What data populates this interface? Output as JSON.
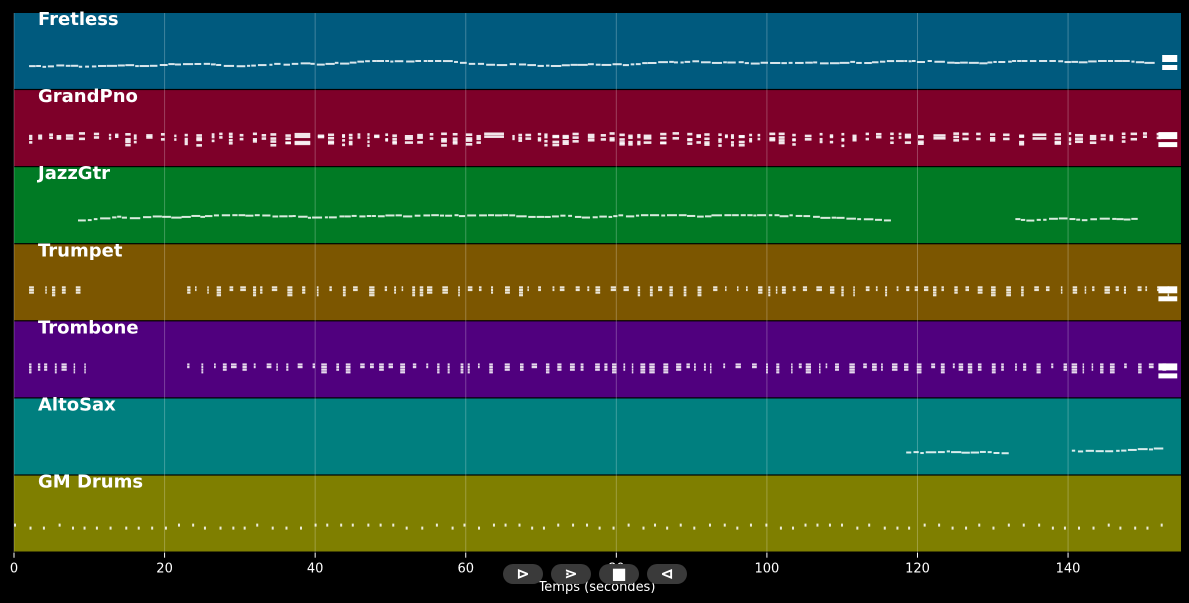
{
  "chart_data": {
    "type": "piano-roll",
    "xlabel": "Temps (secondes)",
    "xlim": [
      0,
      155
    ],
    "xticks": [
      0,
      20,
      40,
      60,
      80,
      100,
      120,
      140
    ],
    "grid": true,
    "tracks": [
      {
        "name": "Fretless",
        "color": "#005a7e",
        "style": "melody",
        "active": [
          [
            2,
            151
          ]
        ],
        "block": [
          152.5,
          154.5
        ]
      },
      {
        "name": "GrandPno",
        "color": "#7e0029",
        "style": "chords",
        "active": [
          [
            2,
            153
          ]
        ],
        "block": [
          152,
          154.5
        ]
      },
      {
        "name": "JazzGtr",
        "color": "#007a24",
        "style": "melody",
        "active": [
          [
            8.5,
            116
          ],
          [
            133,
            149
          ]
        ],
        "block": null
      },
      {
        "name": "Trumpet",
        "color": "#7c5600",
        "style": "stabs",
        "active": [
          [
            2,
            10
          ],
          [
            23,
            154
          ]
        ],
        "block": [
          152,
          154.5
        ]
      },
      {
        "name": "Trombone",
        "color": "#50007e",
        "style": "stabs",
        "active": [
          [
            2,
            10
          ],
          [
            23,
            154
          ]
        ],
        "block": [
          152,
          154.5
        ]
      },
      {
        "name": "AltoSax",
        "color": "#007f7f",
        "style": "melody",
        "active": [
          [
            118.5,
            132
          ],
          [
            140.5,
            152
          ]
        ],
        "block": null
      },
      {
        "name": "GM Drums",
        "color": "#7f7f00",
        "style": "drums",
        "active": [
          [
            0,
            153
          ]
        ],
        "block": null
      }
    ]
  },
  "controls": {
    "play": "⊳",
    "forward": "⋗",
    "stop": "■",
    "back": "⊲"
  }
}
